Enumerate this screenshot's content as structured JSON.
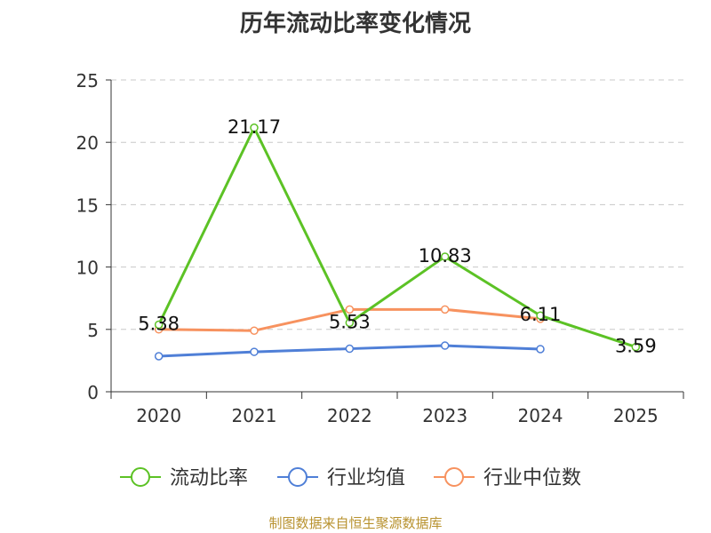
{
  "chart_data": {
    "type": "line",
    "title": "历年流动比率变化情况",
    "categories": [
      "2020",
      "2021",
      "2022",
      "2023",
      "2024",
      "2025"
    ],
    "ylim": [
      0,
      25
    ],
    "yticks": [
      0,
      5,
      10,
      15,
      20,
      25
    ],
    "grid": true,
    "legend_position": "bottom",
    "series": [
      {
        "name": "流动比率",
        "color": "#5cc225",
        "values": [
          5.38,
          21.17,
          5.53,
          10.83,
          6.11,
          3.59
        ],
        "labels": [
          "5.38",
          "21.17",
          "5.53",
          "10.83",
          "6.11",
          "3.59"
        ]
      },
      {
        "name": "行业均值",
        "color": "#4f7fd7",
        "values": [
          2.85,
          3.2,
          3.45,
          3.7,
          3.42,
          null
        ]
      },
      {
        "name": "行业中位数",
        "color": "#f7925f",
        "values": [
          5.0,
          4.9,
          6.6,
          6.6,
          5.85,
          null
        ]
      }
    ]
  },
  "footer": "制图数据来自恒生聚源数据库"
}
